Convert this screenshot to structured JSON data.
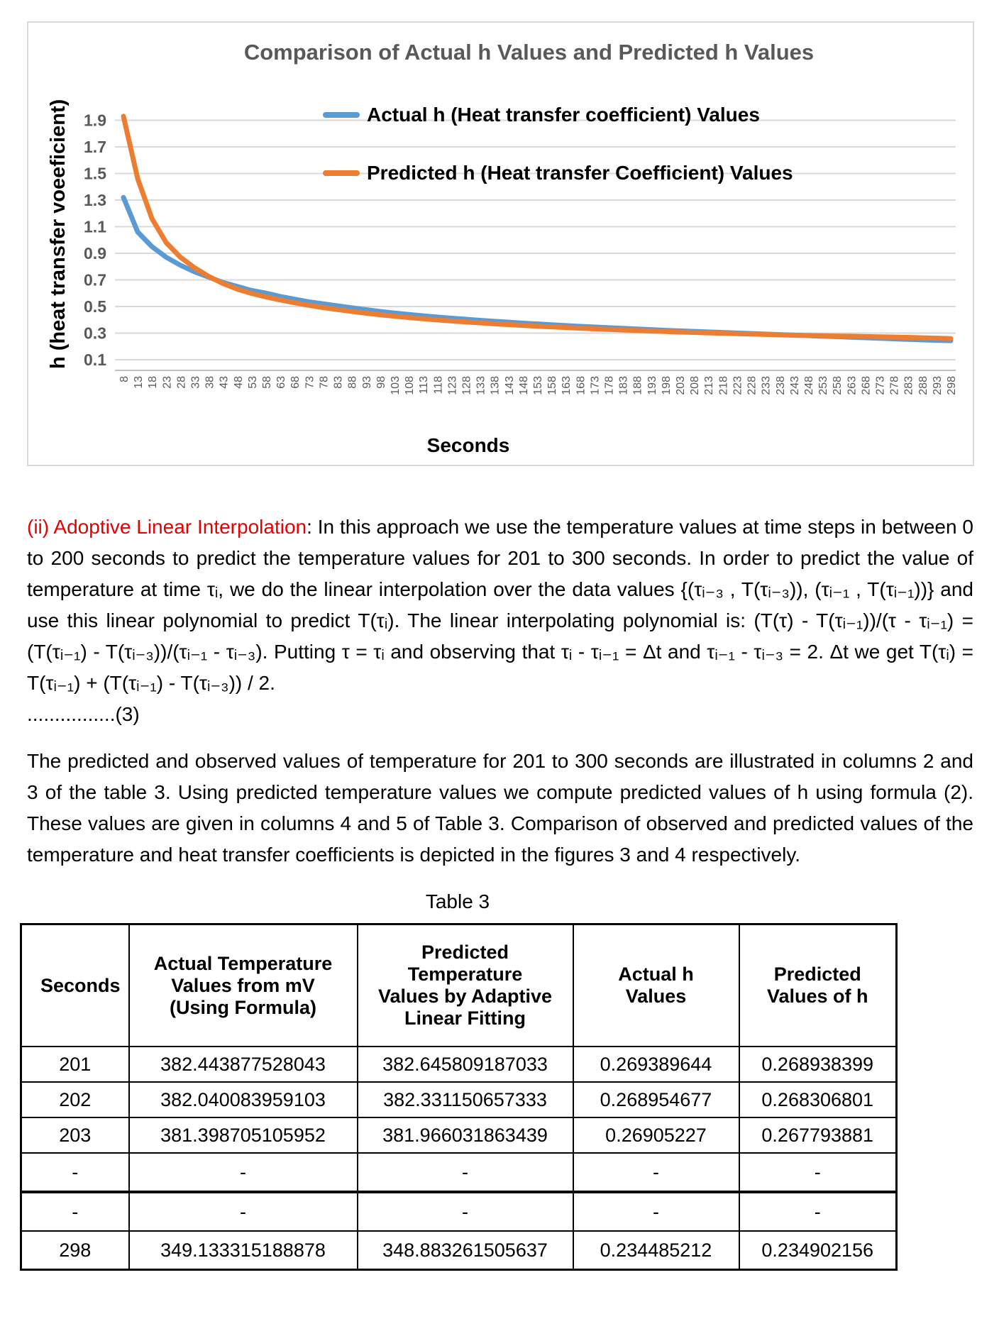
{
  "chart_data": {
    "type": "line",
    "title": "Comparison of Actual h Values and Predicted h Values",
    "xlabel": "Seconds",
    "ylabel": "h (heat transfer voeeficient)",
    "x": [
      8,
      13,
      18,
      23,
      28,
      33,
      38,
      43,
      48,
      53,
      58,
      63,
      68,
      73,
      78,
      83,
      88,
      93,
      98,
      103,
      108,
      113,
      118,
      123,
      128,
      133,
      138,
      143,
      148,
      153,
      158,
      163,
      168,
      173,
      178,
      183,
      188,
      193,
      198,
      203,
      208,
      213,
      218,
      223,
      228,
      233,
      238,
      243,
      248,
      253,
      258,
      263,
      268,
      273,
      278,
      283,
      288,
      293,
      298
    ],
    "series": [
      {
        "name": "Actual h (Heat transfer coefficient) Values",
        "color": "#5B9BD5",
        "values": [
          1.32,
          1.06,
          0.95,
          0.87,
          0.81,
          0.76,
          0.72,
          0.68,
          0.65,
          0.62,
          0.6,
          0.575,
          0.555,
          0.535,
          0.52,
          0.505,
          0.49,
          0.476,
          0.463,
          0.451,
          0.44,
          0.43,
          0.421,
          0.412,
          0.404,
          0.396,
          0.389,
          0.382,
          0.375,
          0.369,
          0.363,
          0.357,
          0.351,
          0.346,
          0.341,
          0.336,
          0.331,
          0.326,
          0.321,
          0.317,
          0.313,
          0.309,
          0.305,
          0.301,
          0.297,
          0.293,
          0.289,
          0.285,
          0.281,
          0.277,
          0.273,
          0.269,
          0.265,
          0.261,
          0.257,
          0.253,
          0.249,
          0.246,
          0.243
        ]
      },
      {
        "name": "Predicted h (Heat transfer Coefficient) Values",
        "color": "#ED7D31",
        "values": [
          1.93,
          1.46,
          1.16,
          0.98,
          0.87,
          0.79,
          0.725,
          0.672,
          0.63,
          0.598,
          0.572,
          0.549,
          0.528,
          0.509,
          0.492,
          0.477,
          0.463,
          0.45,
          0.438,
          0.427,
          0.417,
          0.408,
          0.399,
          0.391,
          0.384,
          0.377,
          0.37,
          0.364,
          0.358,
          0.352,
          0.347,
          0.342,
          0.337,
          0.332,
          0.328,
          0.324,
          0.32,
          0.316,
          0.312,
          0.308,
          0.305,
          0.302,
          0.299,
          0.296,
          0.293,
          0.29,
          0.287,
          0.284,
          0.282,
          0.28,
          0.278,
          0.276,
          0.274,
          0.272,
          0.27,
          0.268,
          0.265,
          0.262,
          0.259
        ]
      }
    ],
    "yticks": [
      0.1,
      0.3,
      0.5,
      0.7,
      0.9,
      1.1,
      1.3,
      1.5,
      1.7,
      1.9
    ],
    "ylim": [
      0,
      1.95
    ],
    "grid": "horizontal",
    "legend_position": "inside-top-left",
    "title_color": "#595959",
    "tick_label_color": "#595959",
    "gridline_color": "#d9d9d9",
    "axis_line_color": "#bfbfbf"
  },
  "section1": {
    "lead": "(ii) Adoptive Linear Interpolation",
    "lead_color": "#e60000",
    "body": ": In this approach we use the temperature values at time steps in between 0 to 200 seconds to predict the temperature values for 201 to 300 seconds. In order to predict the value of temperature at time τᵢ, we do the linear interpolation over the data values {(τᵢ₋₃ , T(τᵢ₋₃)), (τᵢ₋₁ , T(τᵢ₋₁))} and use this linear polynomial to predict T(τᵢ). The linear interpolating polynomial is: (T(τ) - T(τᵢ₋₁))/(τ - τᵢ₋₁) = (T(τᵢ₋₁) - T(τᵢ₋₃))/(τᵢ₋₁ - τᵢ₋₃). Putting τ = τᵢ and observing that τᵢ - τᵢ₋₁ = Δt and τᵢ₋₁ - τᵢ₋₃ = 2. Δt we get T(τᵢ) = T(τᵢ₋₁) + (T(τᵢ₋₁) - T(τᵢ₋₃)) / 2.",
    "footnote": "................(3)"
  },
  "section2": {
    "body": "The predicted and observed values of temperature for 201 to 300 seconds are illustrated in columns 2 and 3 of the table 3. Using predicted temperature values we compute predicted values of h using formula (2). These values are given in columns 4 and 5 of Table 3. Comparison of observed and predicted values of the temperature and heat transfer coefficients is depicted in the figures 3 and 4 respectively."
  },
  "table": {
    "caption": "Table 3",
    "headers": [
      "Seconds",
      "Actual Temperature Values from mV (Using Formula)",
      "Predicted Temperature Values by Adaptive Linear Fitting",
      "Actual h Values",
      "Predicted Values of h"
    ],
    "rows": [
      [
        "201",
        "382.443877528043",
        "382.645809187033",
        "0.269389644",
        "0.268938399"
      ],
      [
        "202",
        "382.040083959103",
        "382.331150657333",
        "0.268954677",
        "0.268306801"
      ],
      [
        "203",
        "381.398705105952",
        "381.966031863439",
        "0.26905227",
        "0.267793881"
      ],
      [
        "-",
        "-",
        "-",
        "-",
        "-"
      ],
      [
        "-",
        "-",
        "-",
        "-",
        "-"
      ],
      [
        "298",
        "349.133315188878",
        "348.883261505637",
        "0.234485212",
        "0.234902156"
      ]
    ]
  }
}
